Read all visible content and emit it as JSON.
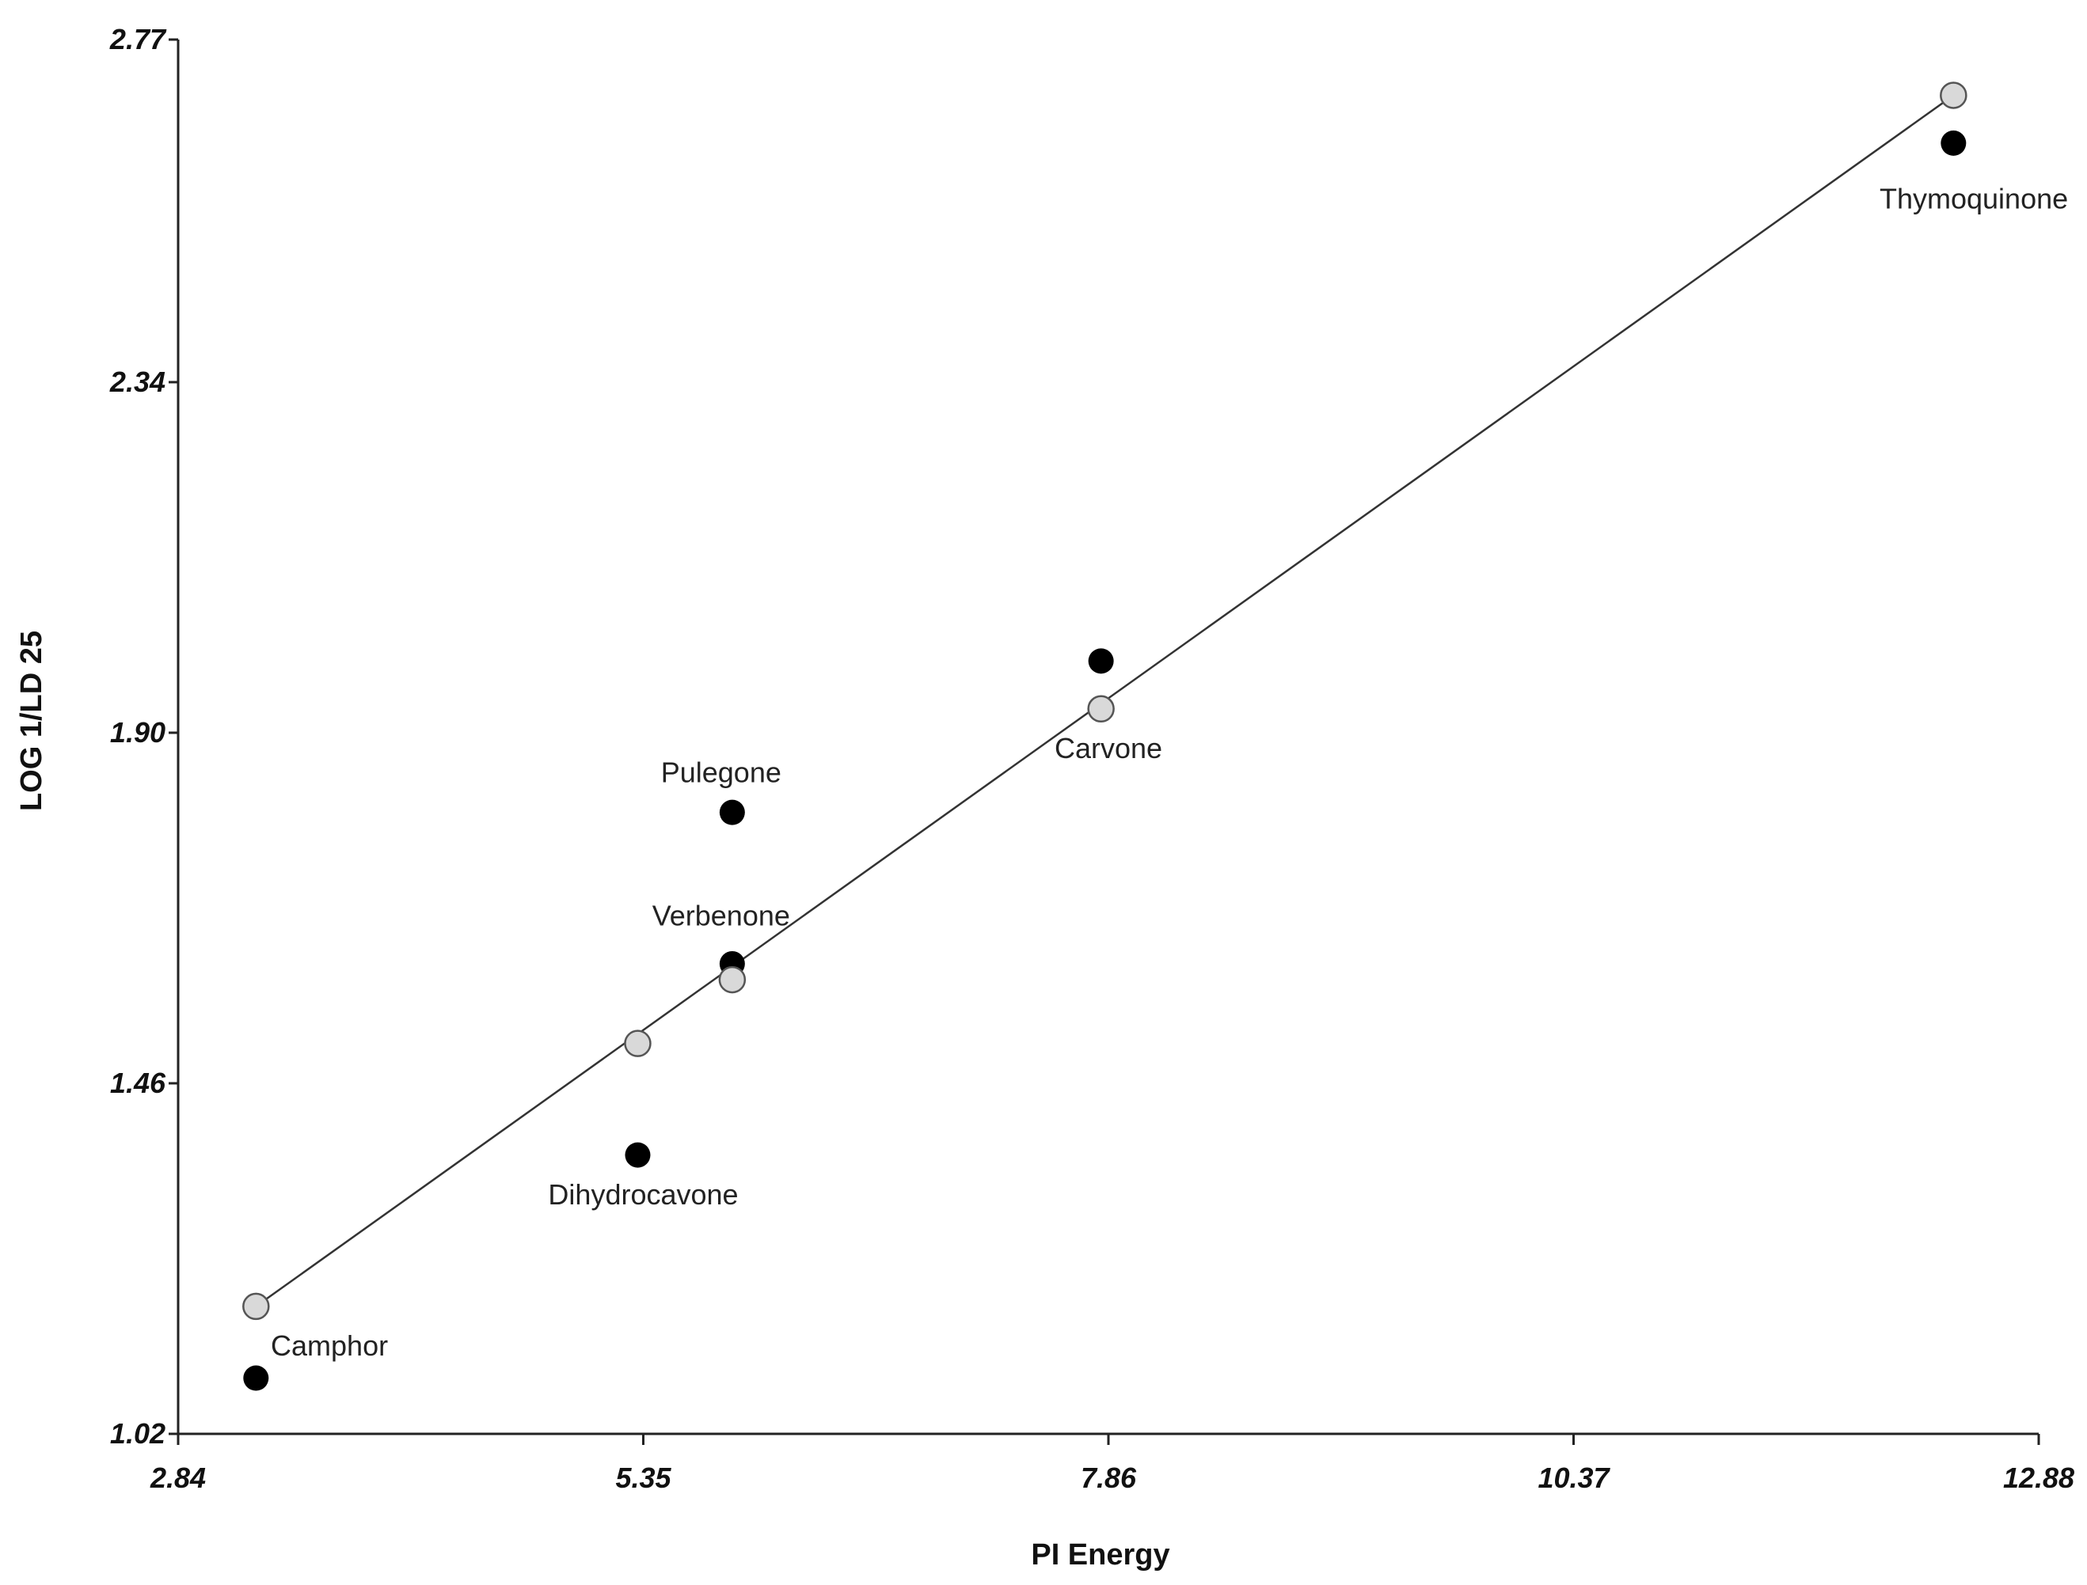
{
  "chart_data": {
    "type": "scatter",
    "title": "",
    "xlabel": "PI Energy",
    "ylabel": "LOG 1/LD 25",
    "xlim": [
      2.84,
      12.88
    ],
    "ylim": [
      1.02,
      2.77
    ],
    "xticks": [
      "2.84",
      "5.35",
      "7.86",
      "10.37",
      "12.88"
    ],
    "yticks": [
      "1.02",
      "1.46",
      "1.90",
      "2.34",
      "2.77"
    ],
    "grid": false,
    "legend": "none",
    "colors": {
      "observed": "#000000",
      "predicted": "#d9d9d9",
      "predicted_stroke": "#555555",
      "fit_line": "#333333",
      "axis": "#222222"
    },
    "series": [
      {
        "values": [
          {
            "label": "Camphor",
            "x": 3.26,
            "y": 1.09
          },
          {
            "label": "Dihydrocavone",
            "x": 5.32,
            "y": 1.37
          },
          {
            "label": "Verbenone",
            "x": 5.83,
            "y": 1.61
          },
          {
            "label": "Pulegone",
            "x": 5.83,
            "y": 1.8
          },
          {
            "label": "Carvone",
            "x": 7.82,
            "y": 1.99
          },
          {
            "label": "Thymoquinone",
            "x": 12.42,
            "y": 2.64
          }
        ]
      },
      {
        "values": [
          {
            "x": 3.26,
            "y": 1.18
          },
          {
            "x": 5.32,
            "y": 1.51
          },
          {
            "x": 5.83,
            "y": 1.59
          },
          {
            "x": 7.82,
            "y": 1.93
          },
          {
            "x": 12.42,
            "y": 2.7
          }
        ]
      }
    ],
    "fit_line": {
      "x": [
        3.26,
        12.42
      ],
      "y": [
        1.18,
        2.7
      ]
    },
    "annotations": [
      {
        "text": "Camphor",
        "x": 3.34,
        "y": 1.13,
        "anchor": "start"
      },
      {
        "text": "Dihydrocavone",
        "x": 5.35,
        "y": 1.32,
        "anchor": "middle"
      },
      {
        "text": "Verbenone",
        "x": 5.77,
        "y": 1.67,
        "anchor": "middle"
      },
      {
        "text": "Pulegone",
        "x": 5.77,
        "y": 1.85,
        "anchor": "middle"
      },
      {
        "text": "Carvone",
        "x": 7.86,
        "y": 1.88,
        "anchor": "middle"
      },
      {
        "text": "Thymoquinone",
        "x": 12.53,
        "y": 2.57,
        "anchor": "middle"
      }
    ]
  }
}
